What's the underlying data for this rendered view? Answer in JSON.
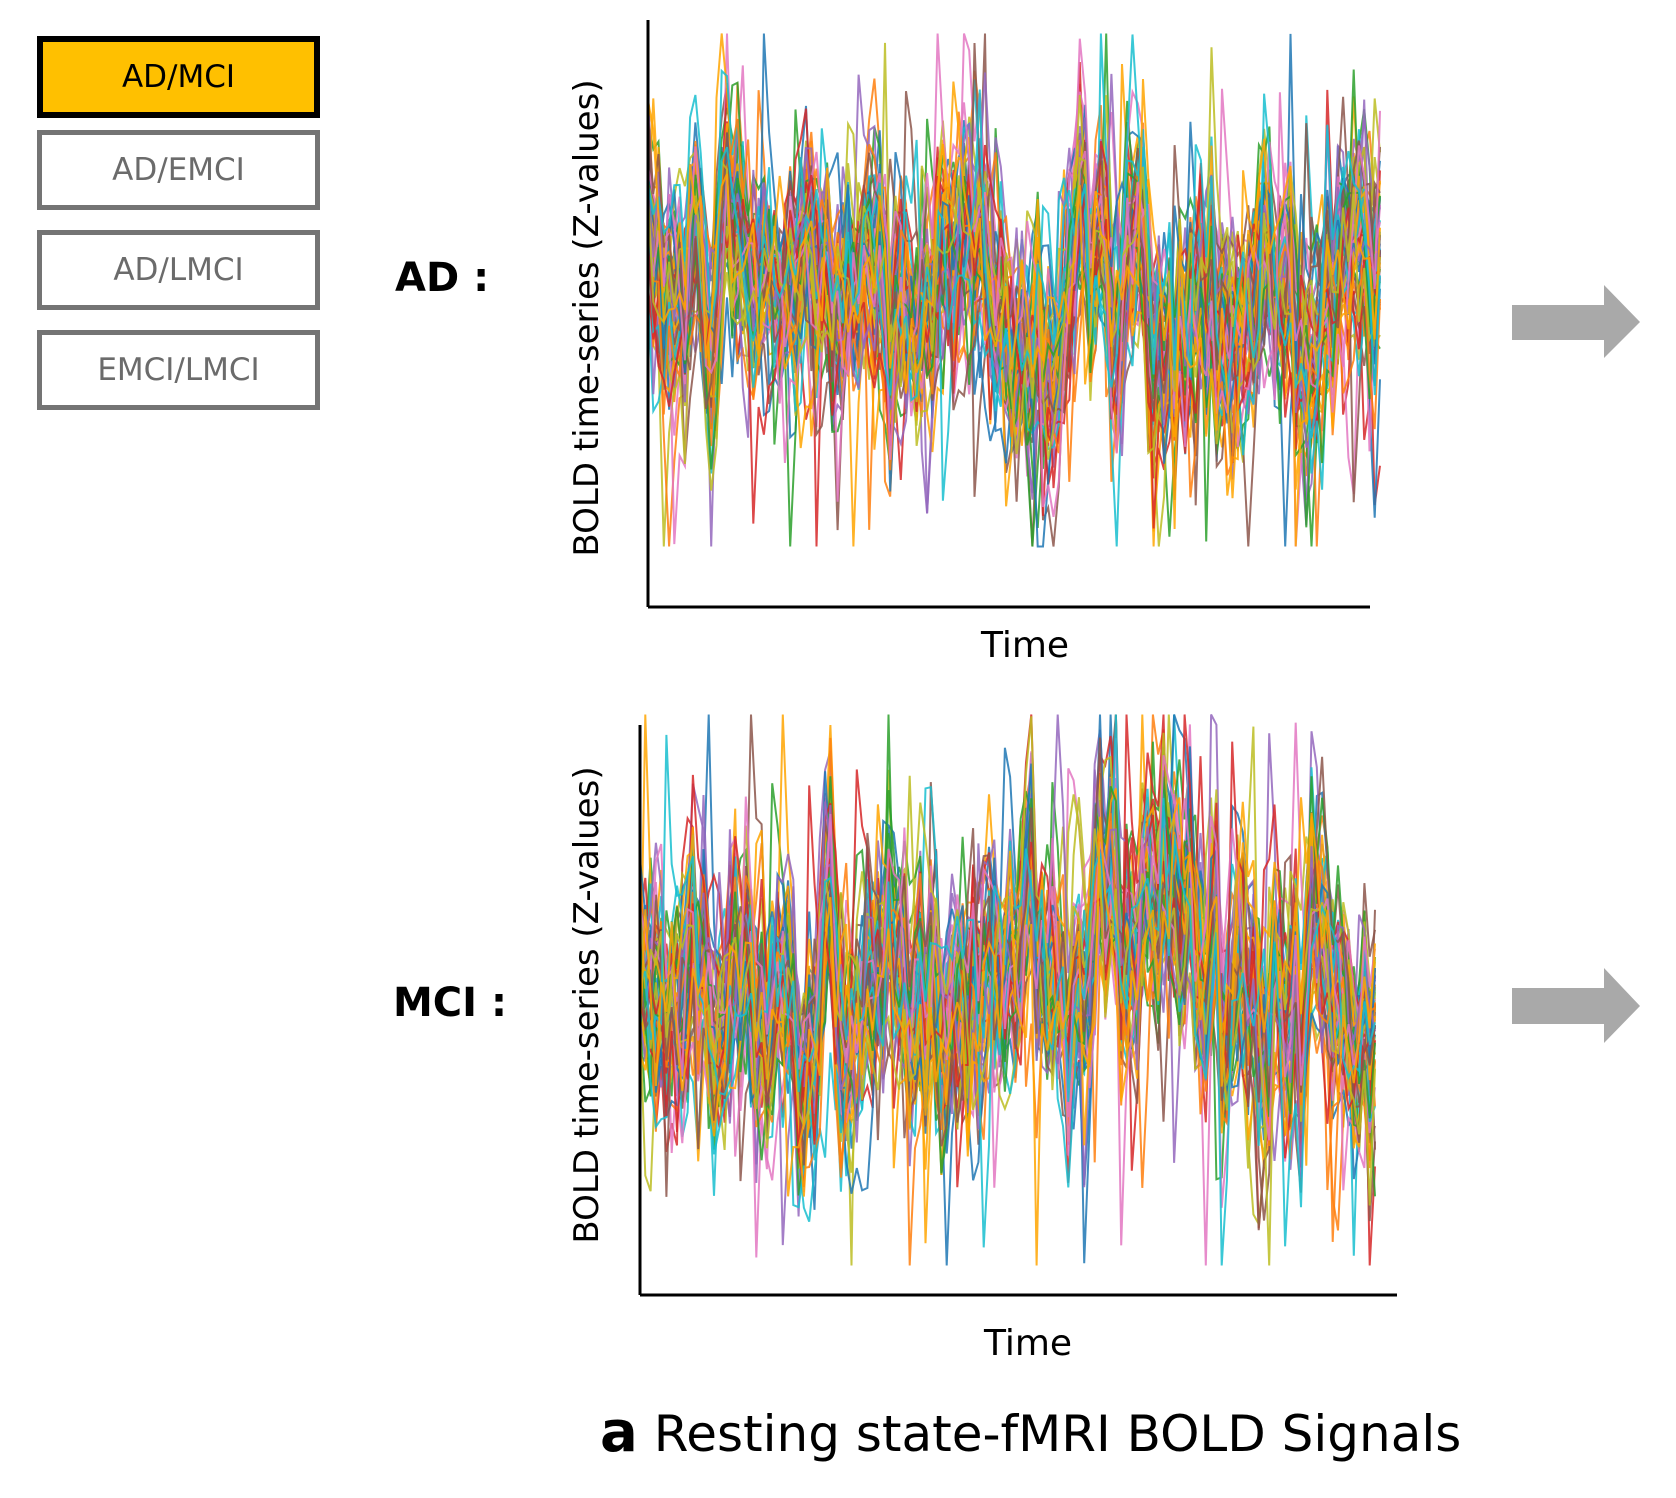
{
  "tabs": [
    "AD/MCI",
    "AD/EMCI",
    "AD/LMCI",
    "EMCI/LMCI"
  ],
  "active_tab": "AD/MCI",
  "groups": {
    "ad": "AD :",
    "mci": "MCI :"
  },
  "caption": {
    "letter": "a",
    "text": "Resting state-fMRI BOLD Signals"
  },
  "colors": [
    "#1f77b4",
    "#ff7f0e",
    "#2ca02c",
    "#d62728",
    "#9467bd",
    "#8c564b",
    "#e377c2",
    "#bcbd22",
    "#17becf",
    "#ffa500"
  ],
  "chart_data": [
    {
      "type": "line",
      "title": "AD",
      "xlabel": "Time",
      "ylabel": "BOLD time-series (Z-values)",
      "n_series": 60,
      "n_timepoints": 140,
      "ylim": [
        -5,
        5
      ],
      "notes": "Dense overlay of BOLD signals for ROIs; ticks not shown"
    },
    {
      "type": "line",
      "title": "MCI",
      "xlabel": "Time",
      "ylabel": "BOLD time-series (Z-values)",
      "n_series": 60,
      "n_timepoints": 140,
      "ylim": [
        -5,
        5
      ],
      "notes": "Dense overlay of BOLD signals for ROIs; ticks not shown"
    }
  ]
}
